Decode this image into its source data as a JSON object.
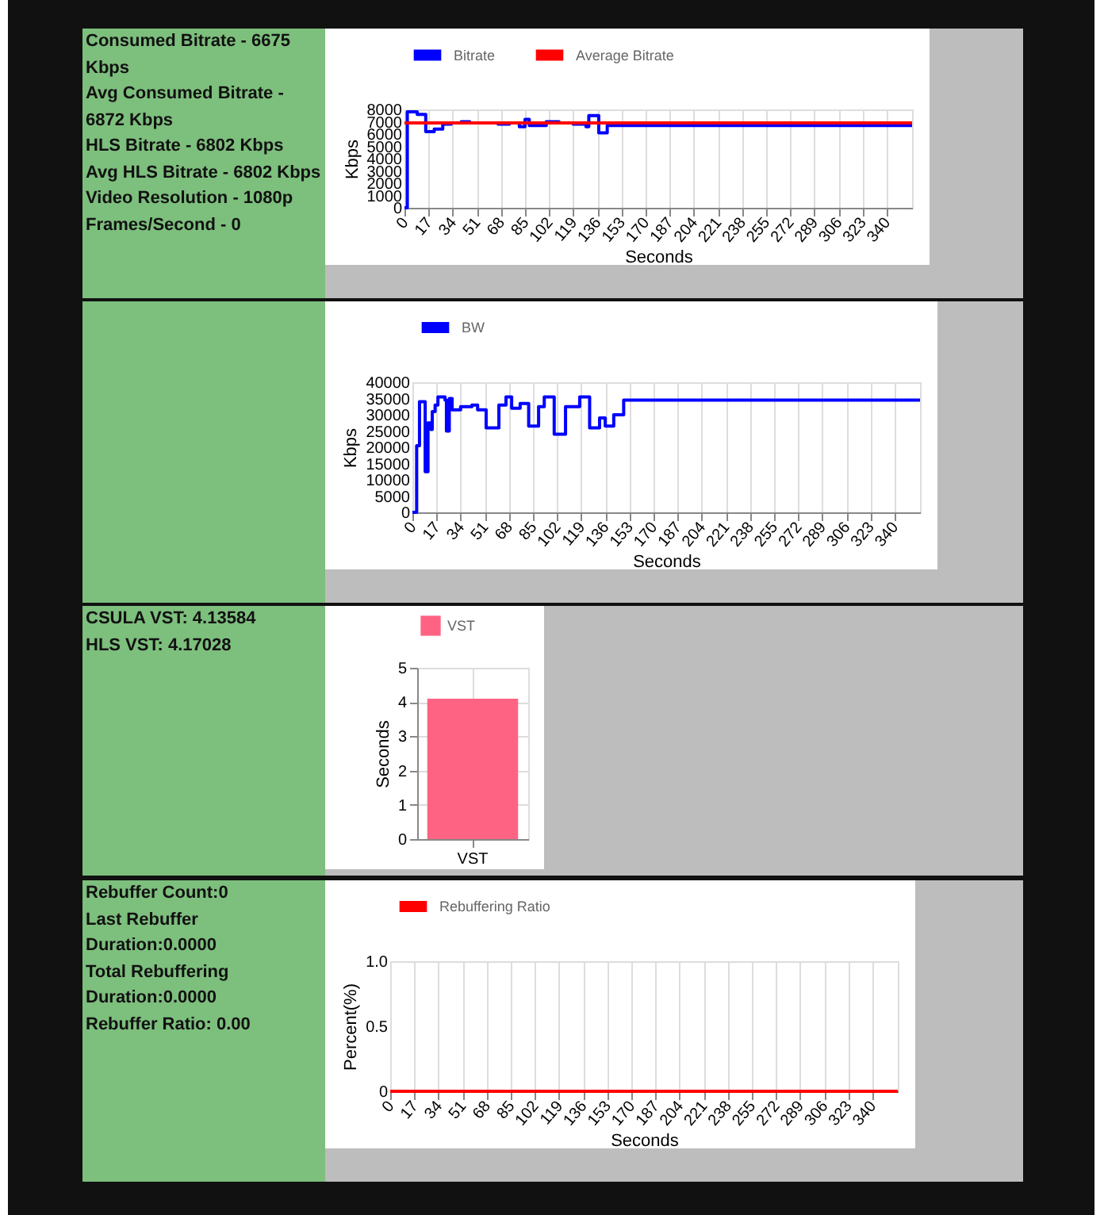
{
  "chart_data": [
    {
      "type": "other",
      "annotations": [
        "Consumed Bitrate - 6675 Kbps",
        "Avg Consumed Bitrate - 6872 Kbps",
        "HLS Bitrate - 6802 Kbps",
        "Avg HLS Bitrate - 6802 Kbps",
        "Video Resolution - 1080p",
        "Frames/Second - 0"
      ]
    },
    {
      "type": "step",
      "xlabel": "Seconds",
      "ylabel": "Kbps",
      "xlim": [
        0,
        358
      ],
      "xticks": [
        0,
        17,
        34,
        51,
        68,
        85,
        102,
        119,
        136,
        153,
        170,
        187,
        204,
        221,
        238,
        255,
        272,
        289,
        306,
        323,
        340
      ],
      "ylim": [
        0,
        8000
      ],
      "yticks": [
        0,
        1000,
        2000,
        3000,
        4000,
        5000,
        6000,
        7000,
        8000
      ],
      "grid": "x",
      "legend": "top",
      "series": [
        {
          "name": "Bitrate",
          "color": "#0000ff",
          "x": [
            0,
            2,
            9,
            15,
            21,
            27,
            33,
            40,
            46,
            57,
            66,
            74,
            81,
            85,
            88,
            100,
            109,
            119,
            128,
            130,
            137,
            143,
            358
          ],
          "values": [
            0,
            7800,
            7600,
            6200,
            6400,
            6800,
            6900,
            7000,
            6900,
            6900,
            6800,
            6900,
            6600,
            7200,
            6700,
            7000,
            6900,
            6800,
            6600,
            7500,
            6100,
            6700,
            6700
          ]
        },
        {
          "name": "Average Bitrate",
          "color": "#ff0000",
          "x": [
            0,
            358
          ],
          "values": [
            6900,
            6900
          ]
        }
      ]
    },
    {
      "type": "step",
      "xlabel": "Seconds",
      "ylabel": "Kbps",
      "xlim": [
        0,
        358
      ],
      "xticks": [
        0,
        17,
        34,
        51,
        68,
        85,
        102,
        119,
        136,
        153,
        170,
        187,
        204,
        221,
        238,
        255,
        272,
        289,
        306,
        323,
        340
      ],
      "ylim": [
        0,
        40000
      ],
      "yticks": [
        0,
        5000,
        10000,
        15000,
        20000,
        25000,
        30000,
        35000,
        40000
      ],
      "grid": "x",
      "legend": "top",
      "series": [
        {
          "name": "BW",
          "color": "#0000ff",
          "x": [
            0,
            3,
            5,
            9,
            11,
            13,
            14,
            16,
            18,
            23,
            24,
            26,
            28,
            34,
            42,
            46,
            52,
            61,
            66,
            70,
            76,
            82,
            89,
            93,
            100,
            108,
            118,
            125,
            132,
            136,
            142,
            149,
            358
          ],
          "values": [
            0,
            20500,
            34000,
            12500,
            27500,
            25500,
            31000,
            33000,
            35500,
            34500,
            25000,
            35000,
            31500,
            32500,
            33000,
            31500,
            26000,
            33000,
            35500,
            32000,
            33500,
            26500,
            32500,
            35500,
            24000,
            32500,
            35500,
            26000,
            29000,
            26500,
            30000,
            34500,
            34500
          ]
        }
      ]
    },
    {
      "type": "other",
      "annotations": [
        "CSULA VST: 4.13584",
        "HLS VST: 4.17028"
      ]
    },
    {
      "type": "bar",
      "categories": [
        "VST"
      ],
      "ylabel": "Seconds",
      "ylim": [
        0,
        5
      ],
      "yticks": [
        0,
        1,
        2,
        3,
        4,
        5
      ],
      "grid": true,
      "legend": "top",
      "series": [
        {
          "name": "VST",
          "color": "#ff6384",
          "values": [
            4.1
          ]
        }
      ]
    },
    {
      "type": "other",
      "annotations": [
        "Rebuffer Count:0",
        "Last Rebuffer Duration:0.0000",
        "Total Rebuffering Duration:0.0000",
        "Rebuffer Ratio: 0.00"
      ]
    },
    {
      "type": "step",
      "xlabel": "Seconds",
      "ylabel": "Percent(%)",
      "xlim": [
        0,
        358
      ],
      "xticks": [
        0,
        17,
        34,
        51,
        68,
        85,
        102,
        119,
        136,
        153,
        170,
        187,
        204,
        221,
        238,
        255,
        272,
        289,
        306,
        323,
        340
      ],
      "ylim": [
        0,
        1
      ],
      "yticks": [
        0,
        0.5,
        {
          "value": 1,
          "label": "1.0"
        }
      ],
      "grid": "x",
      "legend": "top",
      "series": [
        {
          "name": "Rebuffering Ratio",
          "color": "#ff0000",
          "x": [
            0,
            358
          ],
          "values": [
            0,
            0
          ]
        }
      ]
    }
  ]
}
